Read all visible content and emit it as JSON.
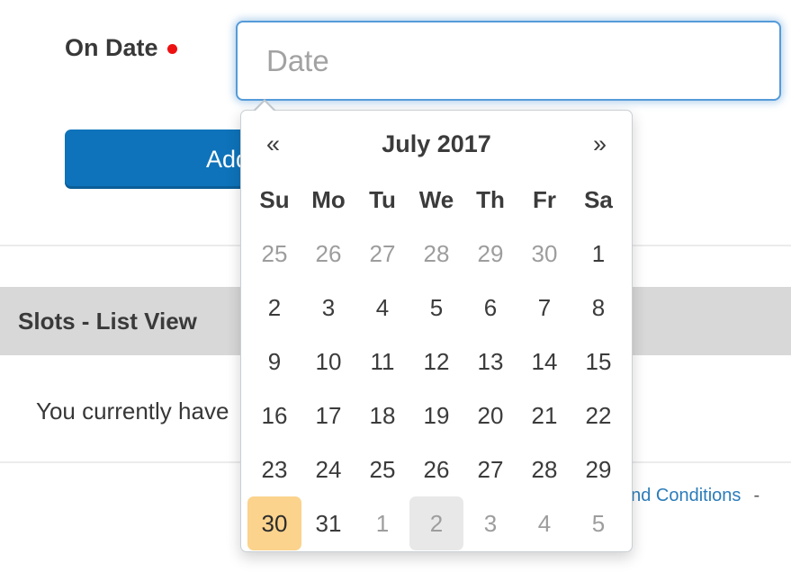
{
  "colors": {
    "accent_blue": "#0e73ba",
    "focus_border": "#569bd8",
    "link_blue": "#2b7cba",
    "required_red": "#ee1111",
    "today_bg": "#fbd38d",
    "adjacent_selected_bg": "#e8e8e8",
    "band_gray": "#d8d8d8",
    "text_dark": "#3b3b3b",
    "text_muted": "#9d9d9d"
  },
  "form": {
    "label": "On Date",
    "input_placeholder": "Date",
    "input_value": "",
    "button_label": "Add"
  },
  "datepicker": {
    "prev": "«",
    "next": "»",
    "month_title": "July 2017",
    "day_headers": [
      "Su",
      "Mo",
      "Tu",
      "We",
      "Th",
      "Fr",
      "Sa"
    ],
    "weeks": [
      [
        {
          "d": "25",
          "muted": true
        },
        {
          "d": "26",
          "muted": true
        },
        {
          "d": "27",
          "muted": true
        },
        {
          "d": "28",
          "muted": true
        },
        {
          "d": "29",
          "muted": true
        },
        {
          "d": "30",
          "muted": true
        },
        {
          "d": "1"
        }
      ],
      [
        {
          "d": "2"
        },
        {
          "d": "3"
        },
        {
          "d": "4"
        },
        {
          "d": "5"
        },
        {
          "d": "6"
        },
        {
          "d": "7"
        },
        {
          "d": "8"
        }
      ],
      [
        {
          "d": "9"
        },
        {
          "d": "10"
        },
        {
          "d": "11"
        },
        {
          "d": "12"
        },
        {
          "d": "13"
        },
        {
          "d": "14"
        },
        {
          "d": "15"
        }
      ],
      [
        {
          "d": "16"
        },
        {
          "d": "17"
        },
        {
          "d": "18"
        },
        {
          "d": "19"
        },
        {
          "d": "20"
        },
        {
          "d": "21"
        },
        {
          "d": "22"
        }
      ],
      [
        {
          "d": "23"
        },
        {
          "d": "24"
        },
        {
          "d": "25"
        },
        {
          "d": "26"
        },
        {
          "d": "27"
        },
        {
          "d": "28"
        },
        {
          "d": "29"
        }
      ],
      [
        {
          "d": "30",
          "today": true
        },
        {
          "d": "31"
        },
        {
          "d": "1",
          "muted": true
        },
        {
          "d": "2",
          "muted": true,
          "selected": true
        },
        {
          "d": "3",
          "muted": true
        },
        {
          "d": "4",
          "muted": true
        },
        {
          "d": "5",
          "muted": true
        }
      ]
    ]
  },
  "content": {
    "section_title": "Slots - List View",
    "message": "You currently have"
  },
  "footer": {
    "link_text": "and Conditions",
    "separator": "-"
  }
}
